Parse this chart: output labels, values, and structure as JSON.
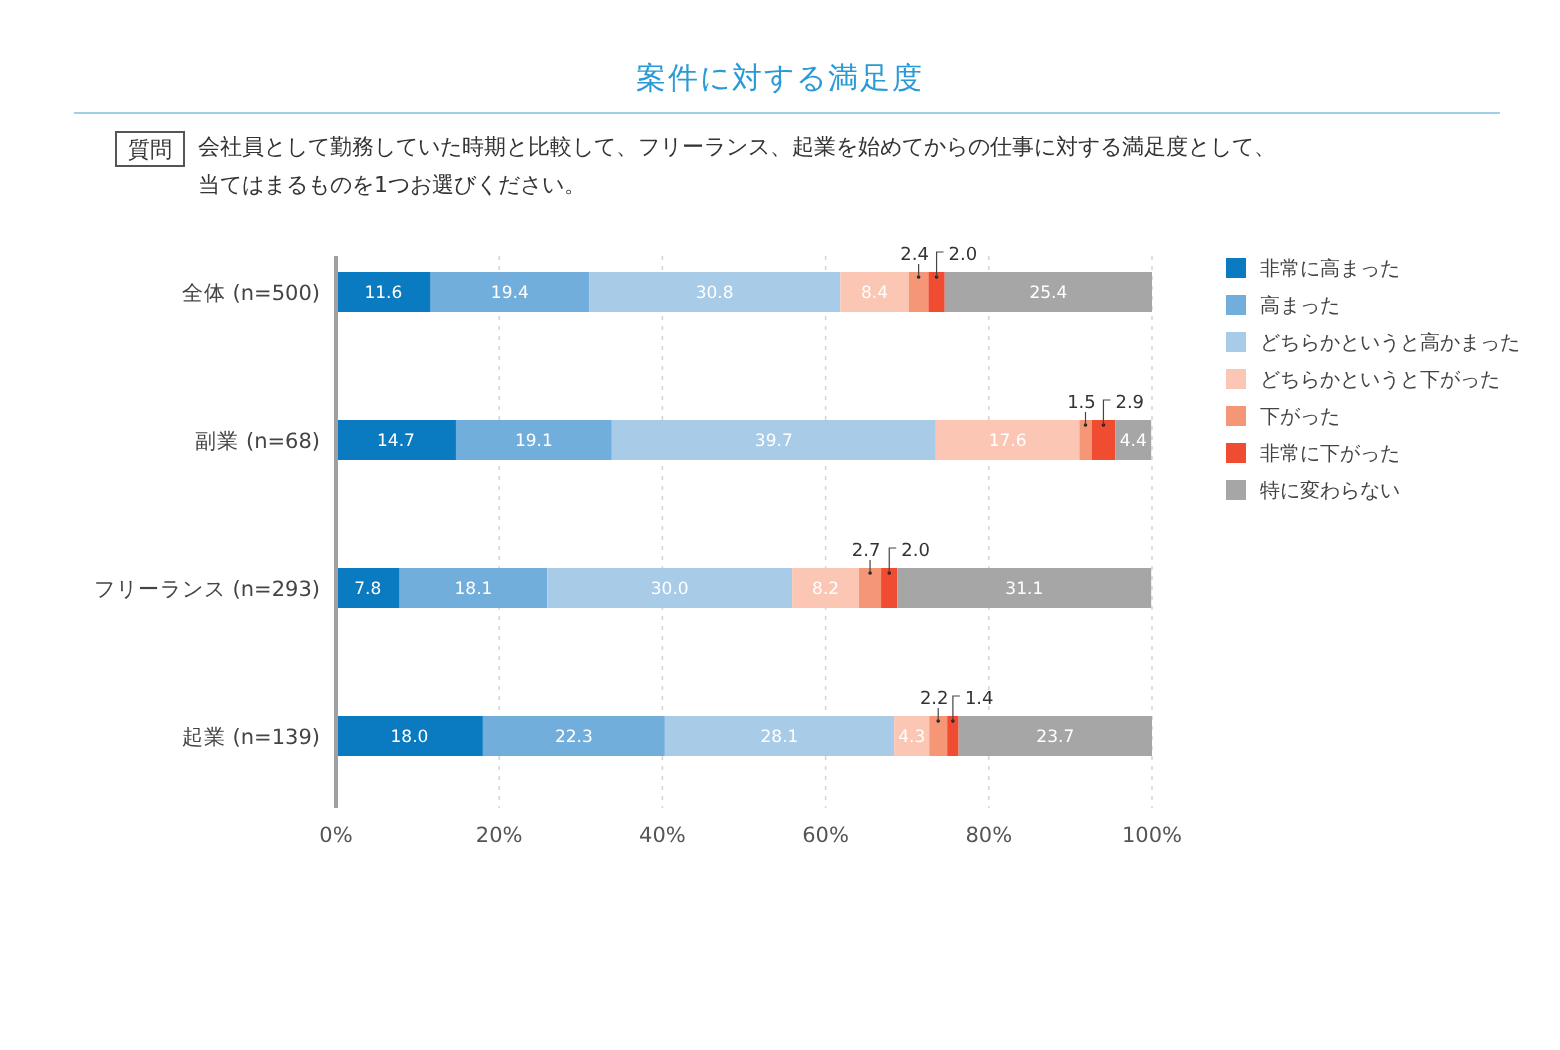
{
  "chart_data": {
    "type": "bar",
    "orientation": "horizontal",
    "stacked": true,
    "title": "案件に対する満足度",
    "annotations": [
      "質問",
      "会社員として勤務していた時期と比較して、フリーランス、起業を始めてからの仕事に対する満足度として、当てはまるものを1つお選びください。"
    ],
    "categories": [
      "全体 (n=500)",
      "副業 (n=68)",
      "フリーランス (n=293)",
      "起業 (n=139)"
    ],
    "series": [
      {
        "name": "非常に高まった",
        "color": "#0a7bc1",
        "values": [
          11.6,
          14.7,
          7.8,
          18.0
        ],
        "value_labels": [
          "11.6",
          "14.7",
          "7.8",
          "18.0"
        ]
      },
      {
        "name": "高まった",
        "color": "#72aedb",
        "values": [
          19.4,
          19.1,
          18.1,
          22.3
        ],
        "value_labels": [
          "19.4",
          "19.1",
          "18.1",
          "22.3"
        ]
      },
      {
        "name": "どちらかというと高かまった",
        "color": "#a8cbe7",
        "values": [
          30.8,
          39.7,
          30.0,
          28.1
        ],
        "value_labels": [
          "30.8",
          "39.7",
          "30.0",
          "28.1"
        ]
      },
      {
        "name": "どちらかというと下がった",
        "color": "#fbc6b3",
        "values": [
          8.4,
          17.6,
          8.2,
          4.3
        ],
        "value_labels": [
          "8.4",
          "17.6",
          "8.2",
          "4.3"
        ]
      },
      {
        "name": "下がった",
        "color": "#f59676",
        "values": [
          2.4,
          1.5,
          2.7,
          2.2
        ],
        "value_labels": [
          "2.4",
          "1.5",
          "2.7",
          "2.2"
        ]
      },
      {
        "name": "非常に下がった",
        "color": "#ef4c32",
        "values": [
          2.0,
          2.9,
          2.0,
          1.4
        ],
        "value_labels": [
          "2.0",
          "2.9",
          "2.0",
          "1.4"
        ]
      },
      {
        "name": "特に変わらない",
        "color": "#a6a6a6",
        "values": [
          25.4,
          4.4,
          31.1,
          23.7
        ],
        "value_labels": [
          "25.4",
          "4.4",
          "31.1",
          "23.7"
        ]
      }
    ],
    "xlim": [
      0,
      100
    ],
    "xticks": [
      {
        "value": 0,
        "label": "0%"
      },
      {
        "value": 20,
        "label": "20%"
      },
      {
        "value": 40,
        "label": "40%"
      },
      {
        "value": 60,
        "label": "60%"
      },
      {
        "value": 80,
        "label": "80%"
      },
      {
        "value": 100,
        "label": "100%"
      }
    ],
    "grid": "x",
    "legend": "right"
  }
}
